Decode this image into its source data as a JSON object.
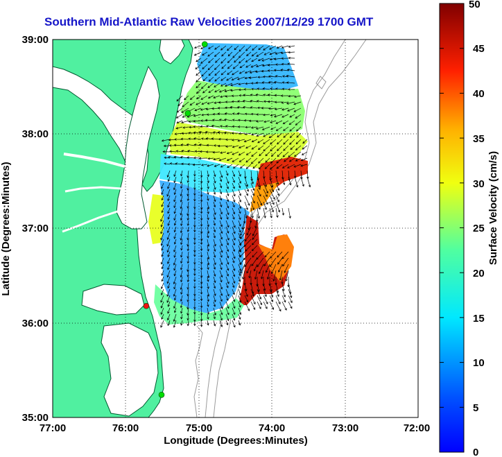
{
  "title": "Southern Mid-Atlantic Raw Velocities 2007/12/29 1700 GMT",
  "colors": {
    "land": "#50f0a0",
    "coast": "#005a30",
    "water": "#ffffff",
    "bathymetry": "#9a9a9a",
    "grid": "#000000",
    "vector": "#000000",
    "station_active": "#00dd00",
    "station_alert": "#ee1111"
  },
  "axes": {
    "xlabel": "Longitude (Degrees:Minutes)",
    "ylabel": "Latitude (Degrees:Minutes)",
    "x_ticks": [
      "77:00",
      "76:00",
      "75:00",
      "74:00",
      "73:00",
      "72:00"
    ],
    "y_ticks": [
      "39:00",
      "38:00",
      "37:00",
      "36:00",
      "35:00"
    ],
    "lon_range": [
      -77,
      -72
    ],
    "lat_range": [
      35,
      39
    ],
    "grid": "dotted"
  },
  "colorbar": {
    "label": "Surface Velocity (cm/s)",
    "ticks": [
      "50",
      "45",
      "40",
      "35",
      "30",
      "25",
      "20",
      "15",
      "10",
      "5",
      "0"
    ],
    "range": [
      0,
      50
    ],
    "colormap": "jet"
  },
  "stations": [
    {
      "color": "#00dd00",
      "lon": -74.92,
      "lat": 38.95
    },
    {
      "color": "#00dd00",
      "lon": -75.15,
      "lat": 38.22
    },
    {
      "color": "#ee1111",
      "lon": -75.72,
      "lat": 36.18
    },
    {
      "color": "#00dd00",
      "lon": -75.51,
      "lat": 35.24
    }
  ]
}
